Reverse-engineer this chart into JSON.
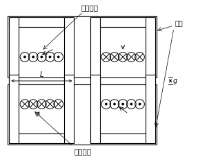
{
  "fig_width": 2.87,
  "fig_height": 2.27,
  "dpi": 100,
  "bg_color": "#ffffff",
  "label_primary": "初级线圈",
  "label_secondary": "次级线圈",
  "label_core": "磁芯",
  "label_L": "L",
  "label_g": "g",
  "line_color": "#000000",
  "lw": 0.8,
  "n_coil": 5,
  "coil_r": 0.024
}
